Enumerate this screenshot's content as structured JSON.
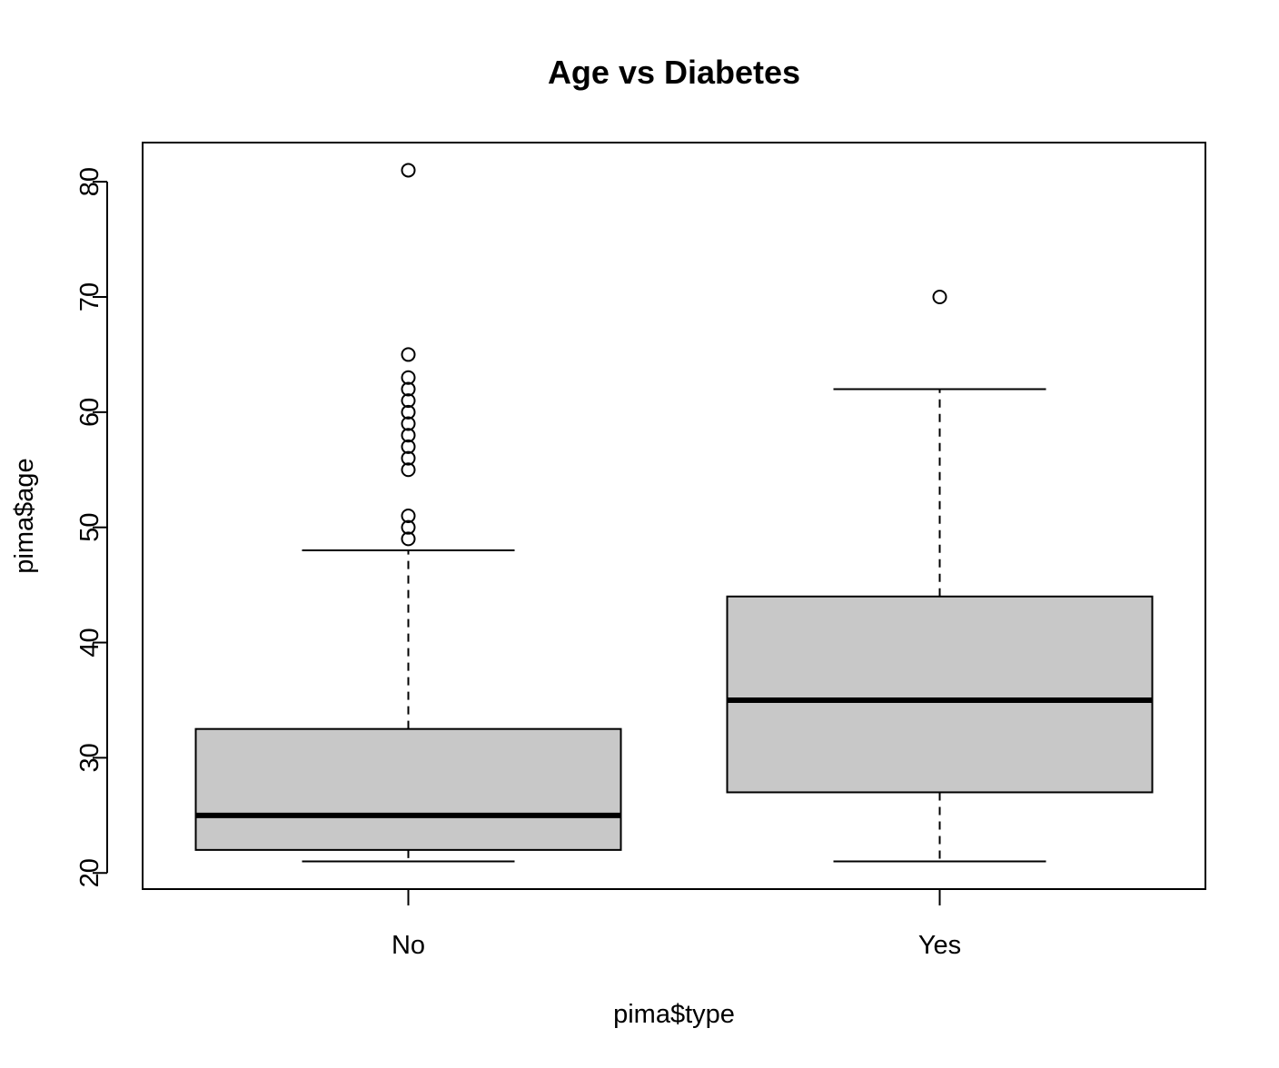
{
  "chart_data": {
    "type": "boxplot",
    "title": "Age vs Diabetes",
    "xlabel": "pima$type",
    "ylabel": "pima$age",
    "categories": [
      "No",
      "Yes"
    ],
    "boxes": [
      {
        "name": "No",
        "whisker_low": 21,
        "q1": 22,
        "median": 25,
        "q3": 32.5,
        "whisker_high": 48,
        "outliers": [
          49,
          50,
          51,
          55,
          56,
          57,
          58,
          59,
          60,
          61,
          62,
          63,
          65,
          81
        ]
      },
      {
        "name": "Yes",
        "whisker_low": 21,
        "q1": 27,
        "median": 35,
        "q3": 44,
        "whisker_high": 62,
        "outliers": [
          70
        ]
      }
    ],
    "ylim": [
      18.6,
      83.4
    ],
    "yticks": [
      20,
      30,
      40,
      50,
      60,
      70,
      80
    ],
    "grid": false,
    "box_fill": "#c8c8c8"
  }
}
